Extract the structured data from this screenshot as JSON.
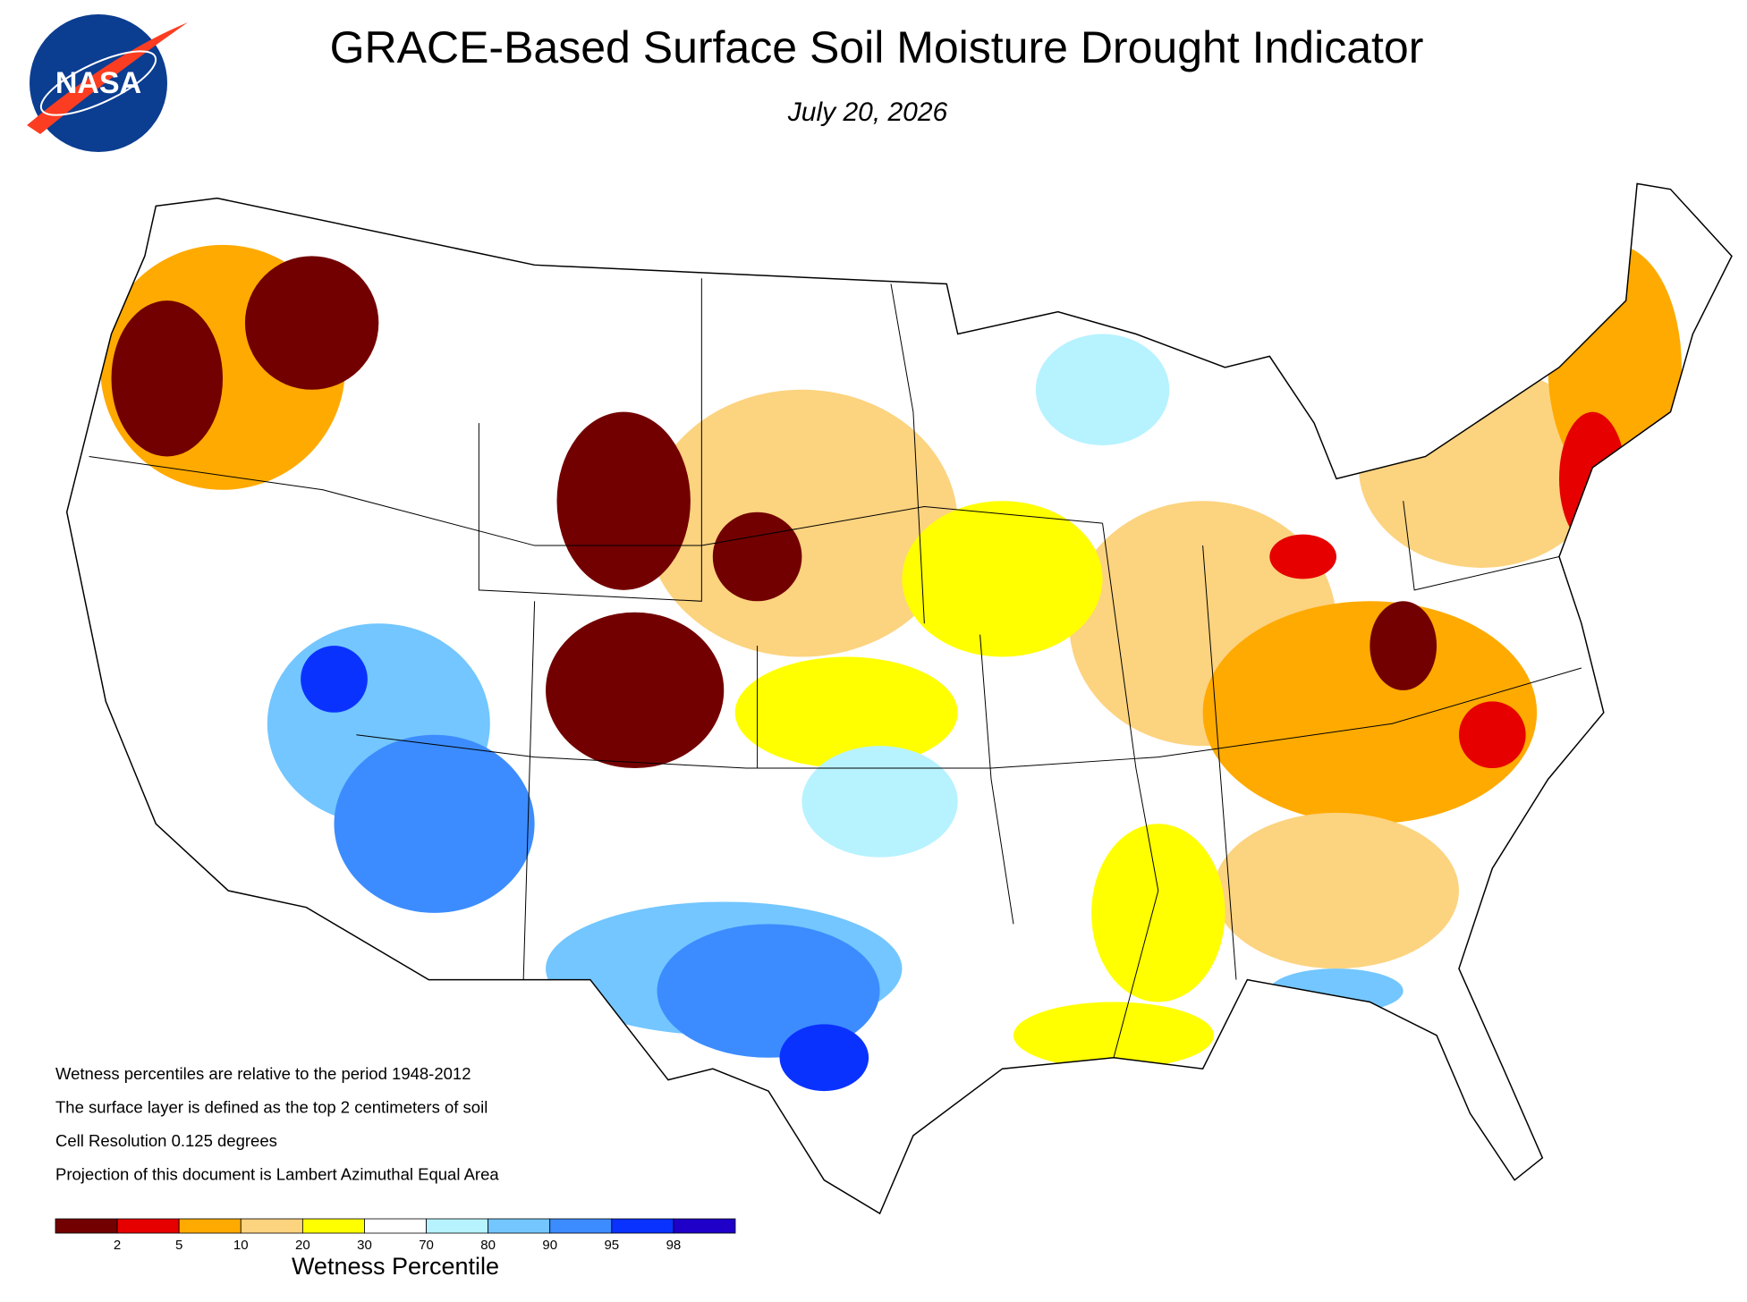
{
  "header": {
    "logo": "NASA",
    "title": "GRACE-Based Surface Soil  Moisture Drought Indicator",
    "date": "July 20, 2026"
  },
  "notes": [
    "Wetness percentiles are relative to the period 1948-2012",
    "The surface layer is defined as the top 2 centimeters of soil",
    "Cell Resolution 0.125 degrees",
    "Projection of this document is Lambert Azimuthal Equal Area"
  ],
  "legend": {
    "title": "Wetness Percentile",
    "colors": [
      "#730000",
      "#e60000",
      "#ffaa00",
      "#fcd37f",
      "#ffff00",
      "#ffffff",
      "#b7f2ff",
      "#73c6ff",
      "#3c8cff",
      "#0a32ff",
      "#1e00c8"
    ],
    "ticks": [
      2,
      5,
      10,
      20,
      30,
      70,
      80,
      90,
      95,
      98
    ]
  }
}
